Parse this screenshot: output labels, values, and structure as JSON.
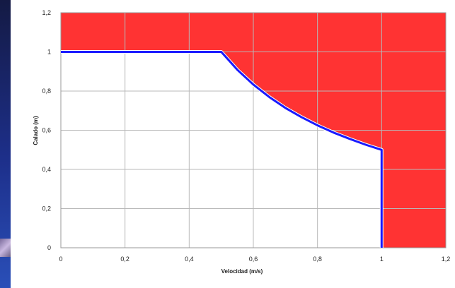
{
  "chart_data": {
    "type": "area",
    "xlabel": "Velocidad (m/s)",
    "ylabel": "Calado (m)",
    "xlim": [
      0,
      1.2
    ],
    "ylim": [
      0,
      1.2
    ],
    "x_ticks": [
      "0",
      "0,2",
      "0,4",
      "0,6",
      "0,8",
      "1",
      "1,2"
    ],
    "y_ticks": [
      "0",
      "0,2",
      "0,4",
      "0,6",
      "0,8",
      "1",
      "1,2"
    ],
    "grid": true,
    "colors": {
      "danger_fill": "#ff3333",
      "safe_fill": "#ffffff",
      "boundary_line": "#1a1aff",
      "grid": "#b8b8b8"
    },
    "series": [
      {
        "x": [
          0,
          0.5,
          0.55,
          0.6,
          0.65,
          0.7,
          0.75,
          0.8,
          0.85,
          0.9,
          0.95,
          1,
          1
        ],
        "y": [
          1,
          1,
          0.909,
          0.833,
          0.769,
          0.714,
          0.667,
          0.625,
          0.588,
          0.556,
          0.526,
          0.5,
          0
        ]
      }
    ]
  }
}
